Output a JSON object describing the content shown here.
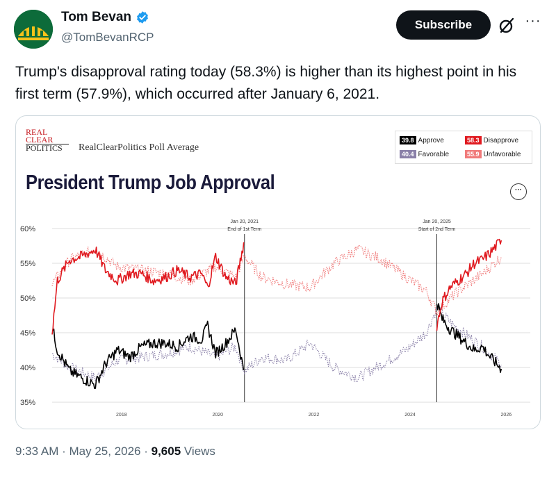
{
  "tweet": {
    "author_name": "Tom Bevan",
    "handle": "@TomBevanRCP",
    "subscribe_label": "Subscribe",
    "more_label": "···",
    "text": "Trump's disapproval rating today (58.3%) is higher than its highest point in his first term (57.9%), which occurred after January 6, 2021.",
    "timestamp": "9:33 AM · May 25, 2026",
    "separator": " · ",
    "views_count": "9,605",
    "views_label": " Views"
  },
  "card": {
    "logo_lines": [
      "REAL",
      "CLEAR",
      "POLITICS"
    ],
    "source_label": "RealClearPolitics Poll Average",
    "title": "President Trump Job Approval",
    "menu_label": "···",
    "legend": [
      {
        "value": "39.8",
        "label": "Approve",
        "color": "#000000"
      },
      {
        "value": "58.3",
        "label": "Disapprove",
        "color": "#e0191f"
      },
      {
        "value": "40.4",
        "label": "Favorable",
        "color": "#8a80a8"
      },
      {
        "value": "55.9",
        "label": "Unfavorable",
        "color": "#f07a7a"
      }
    ]
  },
  "chart_data": {
    "type": "line",
    "ylim": [
      35,
      60
    ],
    "y_ticks": [
      "60%",
      "55%",
      "50%",
      "45%",
      "40%",
      "35%"
    ],
    "x_ticks": [
      "2018",
      "2020",
      "2022",
      "2024",
      "2026"
    ],
    "annotations": [
      {
        "date": "2021-01-20",
        "lines": [
          "Jan 20, 2021",
          "End of 1st Term"
        ]
      },
      {
        "date": "2025-01-20",
        "lines": [
          "Jan 20, 2025",
          "Start of 2nd Term"
        ]
      }
    ],
    "series": [
      {
        "name": "Approve",
        "color": "#000000",
        "style": "solid",
        "x": [
          "2017-01-20",
          "2017-03-01",
          "2017-06-01",
          "2017-09-01",
          "2017-12-15",
          "2018-03-01",
          "2018-06-01",
          "2018-09-01",
          "2018-12-01",
          "2019-03-01",
          "2019-06-01",
          "2019-09-01",
          "2019-12-01",
          "2020-03-01",
          "2020-04-15",
          "2020-06-15",
          "2020-09-01",
          "2020-11-15",
          "2021-01-20",
          "2025-01-20",
          "2025-03-01",
          "2025-05-01",
          "2025-07-01",
          "2025-09-01",
          "2025-11-01",
          "2026-01-01",
          "2026-03-01",
          "2026-05-25"
        ],
        "y": [
          45.9,
          42.5,
          39.5,
          38.5,
          37.5,
          40.5,
          42.5,
          41.5,
          43.0,
          43.5,
          43.5,
          43.0,
          44.5,
          44.0,
          46.0,
          42.0,
          43.5,
          45.5,
          39.0,
          49.5,
          47.0,
          45.5,
          44.5,
          43.5,
          42.5,
          43.0,
          41.5,
          39.8
        ]
      },
      {
        "name": "Disapprove",
        "color": "#e0191f",
        "style": "solid",
        "x": [
          "2017-01-20",
          "2017-03-01",
          "2017-06-01",
          "2017-09-01",
          "2017-12-15",
          "2018-03-01",
          "2018-06-01",
          "2018-09-01",
          "2018-12-01",
          "2019-03-01",
          "2019-06-01",
          "2019-09-01",
          "2019-12-01",
          "2020-03-01",
          "2020-04-15",
          "2020-06-15",
          "2020-09-01",
          "2020-11-15",
          "2021-01-14",
          "2021-01-20",
          "2025-01-20",
          "2025-03-01",
          "2025-05-01",
          "2025-07-01",
          "2025-09-01",
          "2025-11-01",
          "2026-01-01",
          "2026-03-01",
          "2026-05-25"
        ],
        "y": [
          45.0,
          52.5,
          55.5,
          56.0,
          57.0,
          54.0,
          52.5,
          53.5,
          53.5,
          52.5,
          53.0,
          54.0,
          53.0,
          53.5,
          51.5,
          56.0,
          53.0,
          52.0,
          57.9,
          57.5,
          46.0,
          49.5,
          51.5,
          52.5,
          53.5,
          55.0,
          55.5,
          56.5,
          58.3
        ]
      },
      {
        "name": "Favorable",
        "color": "#8a80a8",
        "style": "dotted",
        "x": [
          "2017-01-20",
          "2017-06-01",
          "2017-12-15",
          "2018-06-01",
          "2018-12-01",
          "2019-06-01",
          "2019-12-01",
          "2020-06-15",
          "2020-11-15",
          "2021-01-20",
          "2021-06-01",
          "2021-12-01",
          "2022-06-01",
          "2022-12-01",
          "2023-06-01",
          "2023-12-01",
          "2024-06-01",
          "2024-11-01",
          "2025-01-20",
          "2025-06-01",
          "2026-01-01",
          "2026-05-25"
        ],
        "y": [
          42.0,
          40.0,
          38.5,
          41.0,
          41.5,
          42.0,
          43.0,
          41.5,
          43.0,
          39.5,
          41.5,
          41.0,
          43.5,
          40.0,
          38.5,
          40.5,
          42.5,
          45.0,
          48.5,
          46.0,
          43.0,
          40.4
        ]
      },
      {
        "name": "Unfavorable",
        "color": "#f07a7a",
        "style": "dotted",
        "x": [
          "2017-01-20",
          "2017-06-01",
          "2017-12-15",
          "2018-06-01",
          "2018-12-01",
          "2019-06-01",
          "2019-12-01",
          "2020-06-15",
          "2020-11-15",
          "2021-01-20",
          "2021-06-01",
          "2021-12-01",
          "2022-06-01",
          "2022-12-01",
          "2023-06-01",
          "2023-12-01",
          "2024-06-01",
          "2024-11-01",
          "2025-01-20",
          "2025-06-01",
          "2026-01-01",
          "2026-05-25"
        ],
        "y": [
          52.0,
          55.5,
          57.0,
          54.5,
          54.0,
          53.5,
          52.5,
          54.5,
          53.0,
          56.0,
          53.0,
          52.0,
          51.5,
          55.0,
          57.0,
          55.5,
          53.0,
          51.0,
          48.0,
          50.5,
          53.5,
          55.9
        ]
      }
    ]
  }
}
